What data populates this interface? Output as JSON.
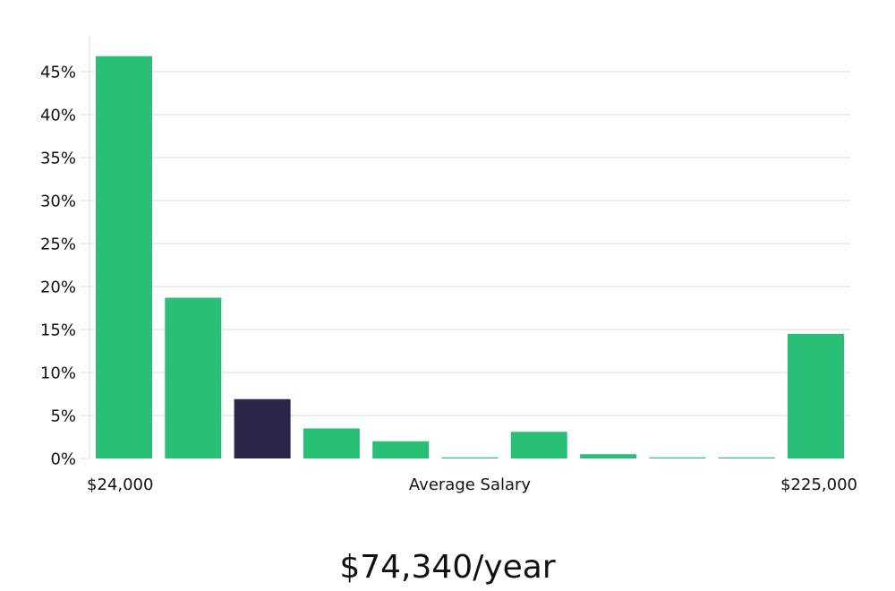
{
  "chart_data": {
    "type": "bar",
    "categories": [
      "$24,000",
      "",
      "",
      "",
      "",
      "",
      "",
      "",
      "",
      "",
      "$225,000"
    ],
    "values": [
      46.8,
      18.7,
      6.9,
      3.5,
      2.0,
      0.1,
      3.1,
      0.5,
      0.1,
      0.1,
      14.5
    ],
    "highlight_index": 2,
    "colors": {
      "bar": "#2abf77",
      "highlight": "#2a2549",
      "grid": "#e6e6e6",
      "axis": "#dddddd"
    },
    "yticks": [
      0,
      5,
      10,
      15,
      20,
      25,
      30,
      35,
      40,
      45
    ],
    "ytick_labels": [
      "0%",
      "5%",
      "10%",
      "15%",
      "20%",
      "25%",
      "30%",
      "35%",
      "40%",
      "45%"
    ],
    "ylim": [
      0,
      49
    ],
    "xlabel": "Average Salary",
    "x_start_label": "$24,000",
    "x_end_label": "$225,000",
    "grid": true
  },
  "average_salary_text": "$74,340/year"
}
